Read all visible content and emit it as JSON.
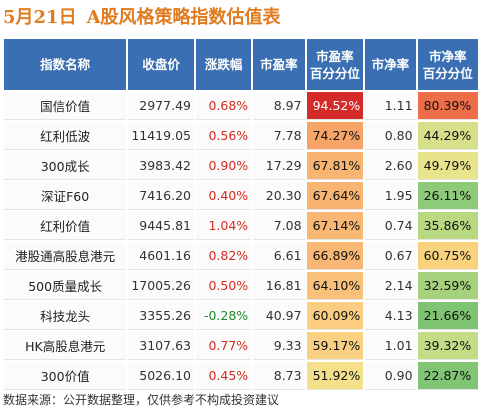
{
  "header": {
    "date": "5月21日",
    "title": "A股风格策略指数估值表"
  },
  "table": {
    "columns": [
      "指数名称",
      "收盘价",
      "涨跌幅",
      "市盈率",
      "市盈率\n百分分位",
      "市净率",
      "市净率\n百分分位"
    ],
    "rows": [
      {
        "name": "国信价值",
        "close": "2977.49",
        "change": "0.68%",
        "pe": "8.97",
        "pe_pct": "94.52%",
        "pb": "1.11",
        "pb_pct": "80.39%",
        "change_dir": "up",
        "pe_pct_color": "#d42a2a",
        "pb_pct_color": "#ee6e4a"
      },
      {
        "name": "红利低波",
        "close": "11419.05",
        "change": "0.56%",
        "pe": "7.78",
        "pe_pct": "74.27%",
        "pb": "0.80",
        "pb_pct": "44.29%",
        "change_dir": "up",
        "pe_pct_color": "#f6a567",
        "pb_pct_color": "#d6e08a"
      },
      {
        "name": "300成长",
        "close": "3983.42",
        "change": "0.90%",
        "pe": "17.29",
        "pe_pct": "67.81%",
        "pb": "2.60",
        "pb_pct": "49.79%",
        "change_dir": "up",
        "pe_pct_color": "#f8b571",
        "pb_pct_color": "#e8e48c"
      },
      {
        "name": "深证F60",
        "close": "7416.20",
        "change": "0.40%",
        "pe": "20.30",
        "pe_pct": "67.64%",
        "pb": "1.95",
        "pb_pct": "26.11%",
        "change_dir": "up",
        "pe_pct_color": "#f8b571",
        "pb_pct_color": "#8ecb78"
      },
      {
        "name": "红利价值",
        "close": "9445.81",
        "change": "1.04%",
        "pe": "7.08",
        "pe_pct": "67.14%",
        "pb": "0.74",
        "pb_pct": "35.86%",
        "change_dir": "up",
        "pe_pct_color": "#f8b772",
        "pb_pct_color": "#b8d882"
      },
      {
        "name": "港股通高股息港元",
        "close": "4601.16",
        "change": "0.82%",
        "pe": "6.61",
        "pe_pct": "66.89%",
        "pb": "0.67",
        "pb_pct": "60.75%",
        "change_dir": "up",
        "pe_pct_color": "#f8b873",
        "pb_pct_color": "#f9d27e"
      },
      {
        "name": "500质量成长",
        "close": "17005.26",
        "change": "0.50%",
        "pe": "16.81",
        "pe_pct": "64.10%",
        "pb": "2.14",
        "pb_pct": "32.59%",
        "change_dir": "up",
        "pe_pct_color": "#f9c07a",
        "pb_pct_color": "#a6d27e"
      },
      {
        "name": "科技龙头",
        "close": "3355.26",
        "change": "-0.28%",
        "pe": "40.97",
        "pe_pct": "60.09%",
        "pb": "4.13",
        "pb_pct": "21.66%",
        "change_dir": "down",
        "pe_pct_color": "#facd80",
        "pb_pct_color": "#7ec472"
      },
      {
        "name": "HK高股息港元",
        "close": "3107.63",
        "change": "0.77%",
        "pe": "9.33",
        "pe_pct": "59.17%",
        "pb": "1.01",
        "pb_pct": "39.32%",
        "change_dir": "up",
        "pe_pct_color": "#fad082",
        "pb_pct_color": "#c4dc86"
      },
      {
        "name": "300价值",
        "close": "5026.10",
        "change": "0.45%",
        "pe": "8.73",
        "pe_pct": "51.92%",
        "pb": "0.90",
        "pb_pct": "22.87%",
        "change_dir": "up",
        "pe_pct_color": "#f4e08a",
        "pb_pct_color": "#80c573"
      }
    ]
  },
  "colors": {
    "title_orange": "#e07b20",
    "header_blue": "#3a6fb3",
    "up_red": "#d42b20",
    "down_green": "#1e8a2c"
  },
  "footer": {
    "text": "数据来源：公开数据整理，仅供参考不构成投资建议"
  }
}
